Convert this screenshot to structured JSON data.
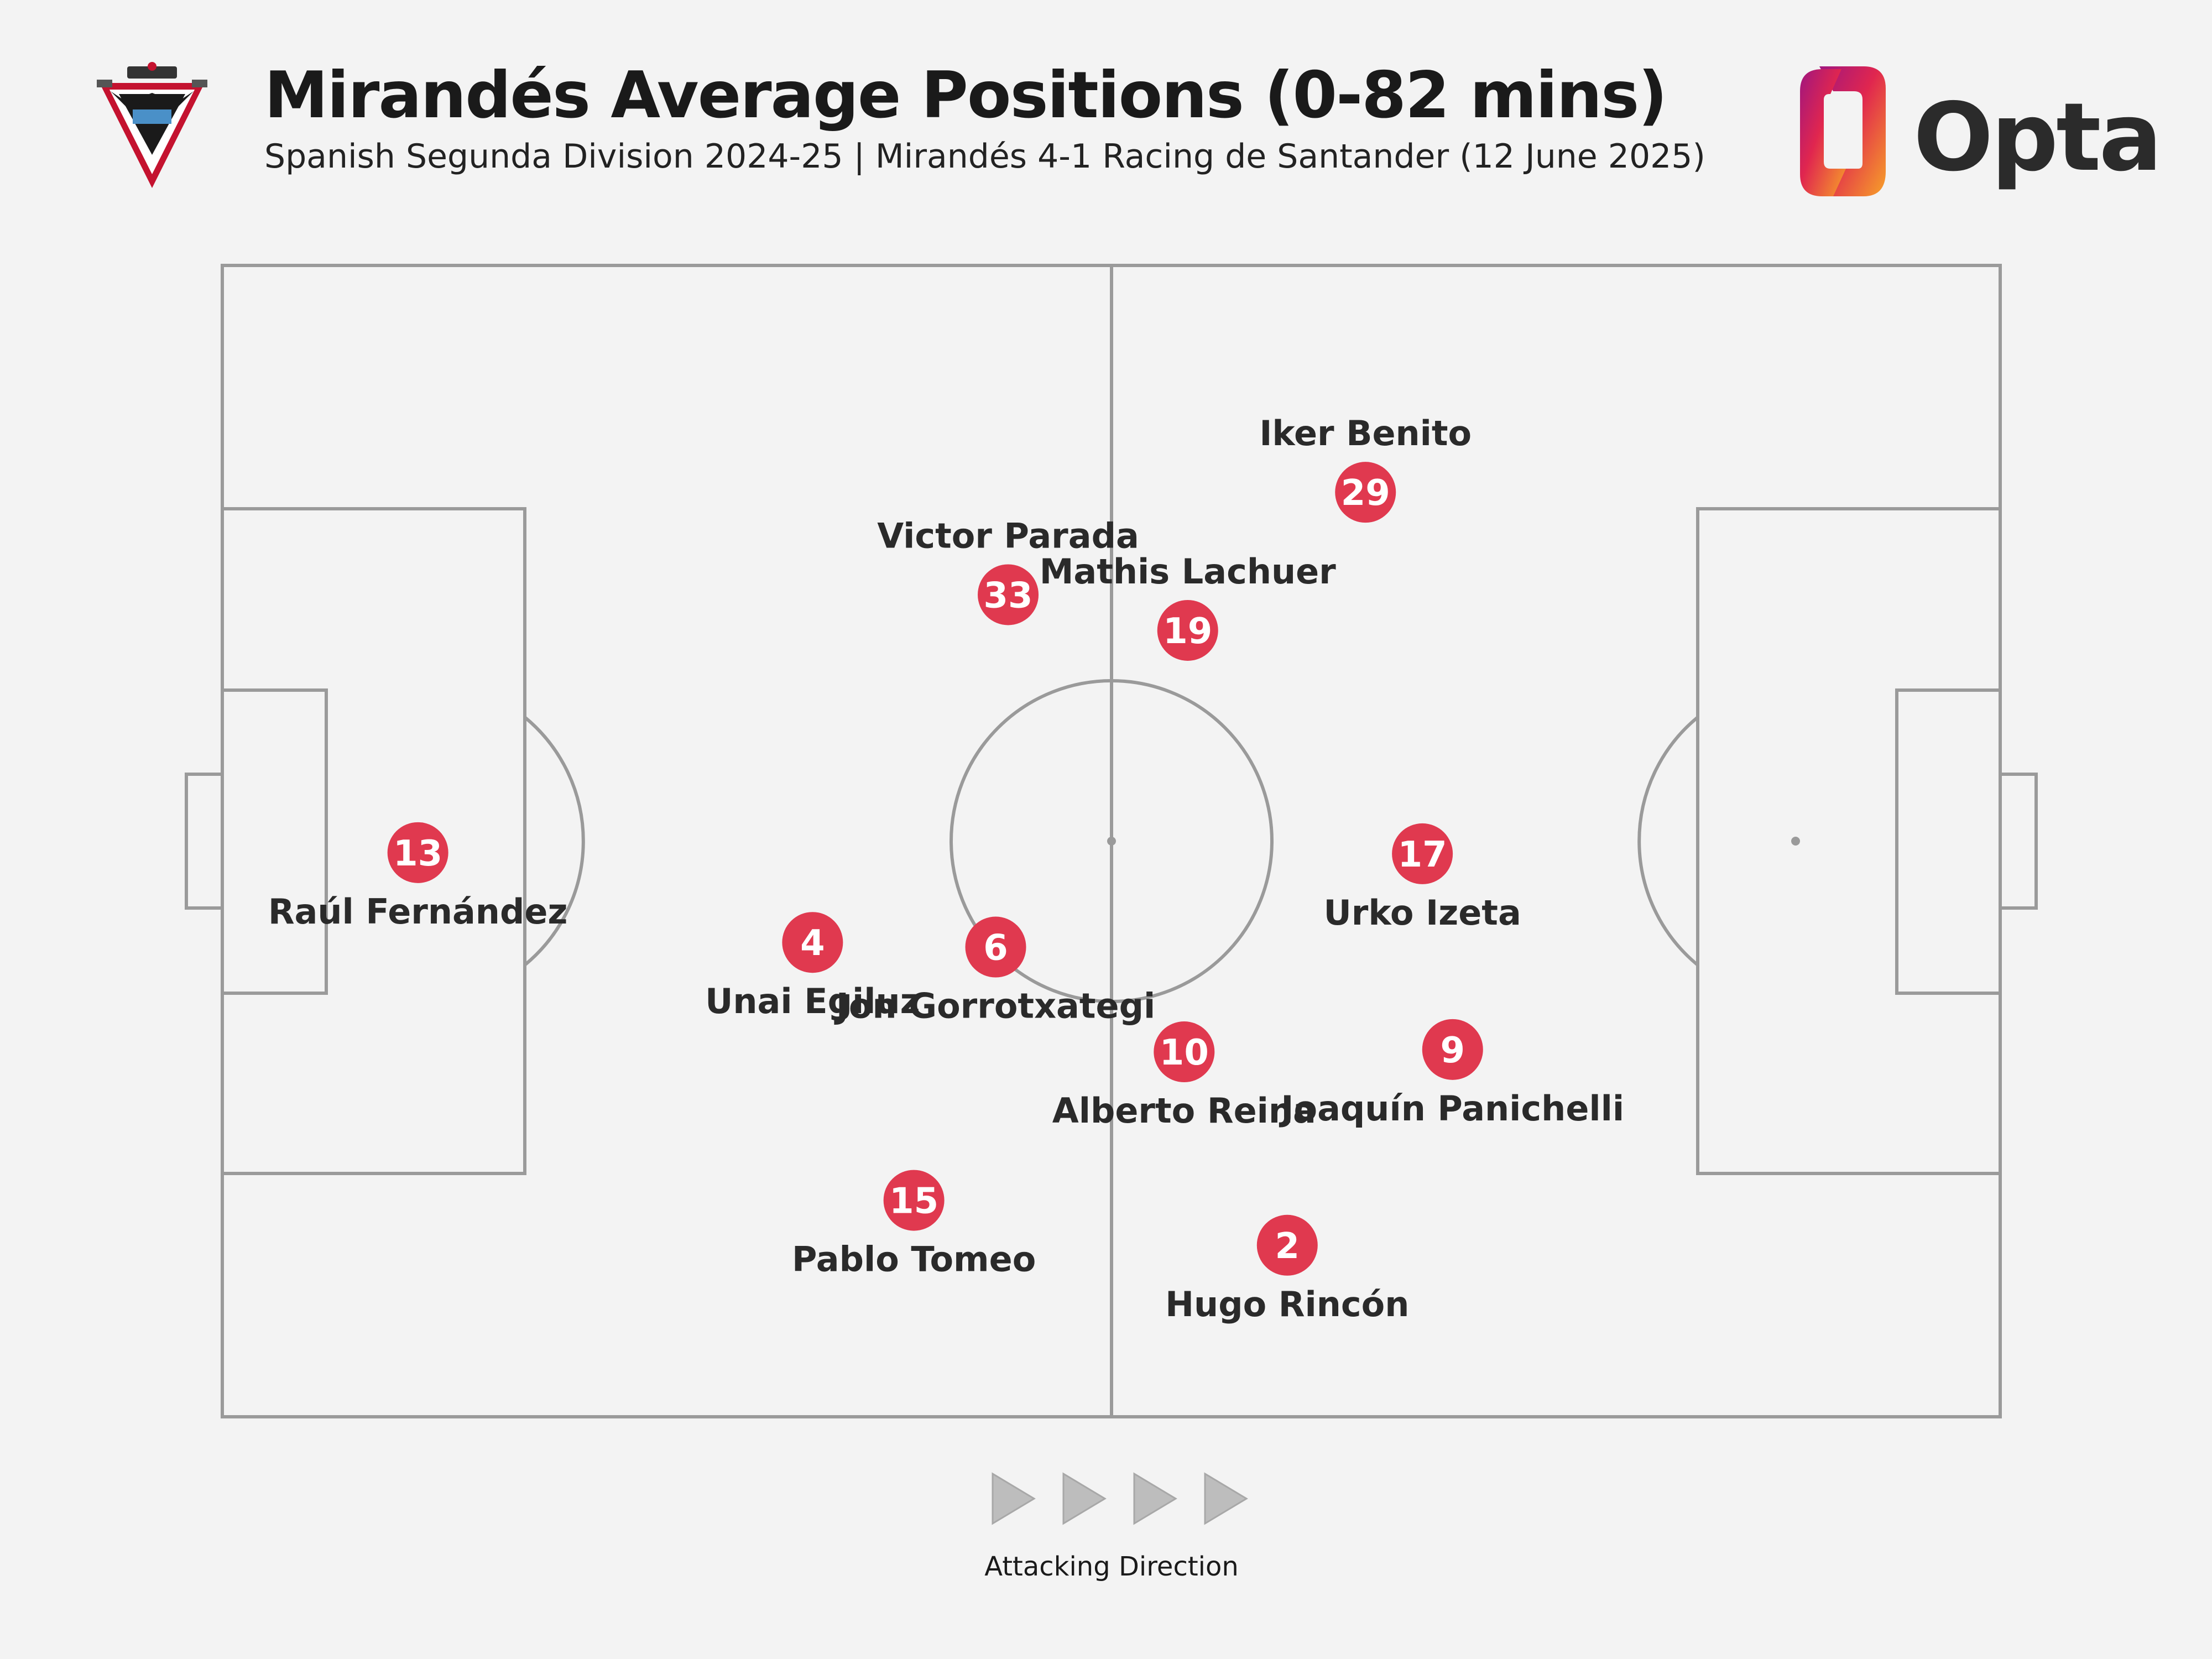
{
  "header": {
    "title": "Mirandés Average Positions (0-82 mins)",
    "subtitle": "Spanish Segunda Division 2024-25 | Mirandés 4-1 Racing de Santander (12 June 2025)",
    "brand": "Opta"
  },
  "colors": {
    "background": "#f3f3f3",
    "pitch_lines": "#9a9a9a",
    "player_marker": "#e0394f",
    "marker_text": "#ffffff",
    "label_text": "#2a2a2a",
    "arrow": "#bdbdbd"
  },
  "chart_data": {
    "type": "scatter",
    "x_range": [
      0,
      100
    ],
    "y_range": [
      0,
      100
    ],
    "grid": false,
    "players": [
      {
        "number": "13",
        "name": "Raúl Fernández",
        "x": 11.0,
        "y": 49.0,
        "label_pos": "below"
      },
      {
        "number": "4",
        "name": "Unai Egiluz",
        "x": 33.2,
        "y": 41.2,
        "label_pos": "below"
      },
      {
        "number": "6",
        "name": "Jon Gorrotxategi",
        "x": 43.5,
        "y": 40.8,
        "label_pos": "below"
      },
      {
        "number": "15",
        "name": "Pablo Tomeo",
        "x": 38.9,
        "y": 18.8,
        "label_pos": "below"
      },
      {
        "number": "33",
        "name": "Victor Parada",
        "x": 44.2,
        "y": 71.4,
        "label_pos": "above"
      },
      {
        "number": "19",
        "name": "Mathis Lachuer",
        "x": 54.3,
        "y": 68.3,
        "label_pos": "above"
      },
      {
        "number": "29",
        "name": "Iker Benito",
        "x": 64.3,
        "y": 80.3,
        "label_pos": "above"
      },
      {
        "number": "17",
        "name": "Urko Izeta",
        "x": 67.5,
        "y": 48.9,
        "label_pos": "below"
      },
      {
        "number": "10",
        "name": "Alberto Reina",
        "x": 54.1,
        "y": 31.7,
        "label_pos": "below"
      },
      {
        "number": "9",
        "name": "Joaquín Panichelli",
        "x": 69.2,
        "y": 31.9,
        "label_pos": "below"
      },
      {
        "number": "2",
        "name": "Hugo Rincón",
        "x": 59.9,
        "y": 14.9,
        "label_pos": "below"
      }
    ]
  },
  "footer": {
    "direction_label": "Attacking Direction"
  }
}
